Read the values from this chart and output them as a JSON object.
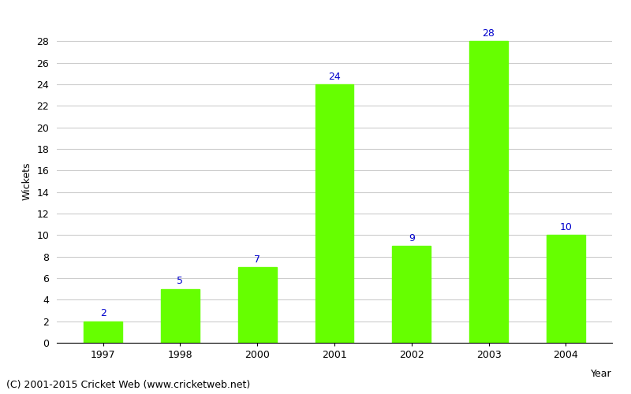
{
  "categories": [
    "1997",
    "1998",
    "2000",
    "2001",
    "2002",
    "2003",
    "2004"
  ],
  "values": [
    2,
    5,
    7,
    24,
    9,
    28,
    10
  ],
  "bar_color": "#66ff00",
  "bar_edge_color": "#66ff00",
  "xlabel": "Year",
  "ylabel": "Wickets",
  "ylim": [
    0,
    30
  ],
  "yticks": [
    0,
    2,
    4,
    6,
    8,
    10,
    12,
    14,
    16,
    18,
    20,
    22,
    24,
    26,
    28
  ],
  "label_color": "#0000cc",
  "label_fontsize": 9,
  "axis_fontsize": 9,
  "tick_fontsize": 9,
  "footer_text": "(C) 2001-2015 Cricket Web (www.cricketweb.net)",
  "footer_fontsize": 9,
  "background_color": "#ffffff",
  "grid_color": "#cccccc",
  "bar_width": 0.5
}
